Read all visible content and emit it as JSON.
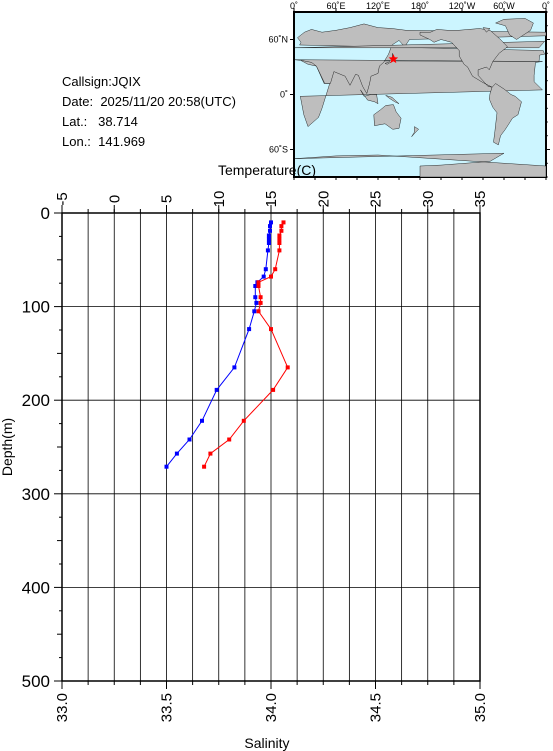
{
  "info": {
    "callsign": "Callsign:JQIX",
    "date_label": "Date:",
    "date": "2025/11/20 20:58(UTC)",
    "lat_label": "Lat.:",
    "lat": "38.714",
    "lon_label": "Lon.:",
    "lon": "141.969"
  },
  "map": {
    "lon_ticks": [
      "0˚",
      "60˚E",
      "120˚E",
      "180˚",
      "120˚W",
      "60˚W",
      "0˚"
    ],
    "lat_ticks": [
      "60˚N",
      "0˚",
      "60˚S"
    ],
    "ocean_color": "#ccf5ff",
    "land_color": "#bebebe",
    "marker": {
      "lon": 141.969,
      "lat": 38.714,
      "symbol": "star",
      "color": "#ff0000"
    }
  },
  "chart_data": {
    "type": "line",
    "title": "",
    "ylabel": "Depth(m)",
    "ylim": [
      500,
      0
    ],
    "yticks": [
      "0",
      "100",
      "200",
      "300",
      "400",
      "500"
    ],
    "top_axis": {
      "label": "Temperature(C)",
      "range": [
        -5,
        35
      ],
      "ticks": [
        "-5",
        "0",
        "5",
        "10",
        "15",
        "20",
        "25",
        "30",
        "35"
      ]
    },
    "bottom_axis": {
      "label": "Salinity",
      "range": [
        33.0,
        35.0
      ],
      "ticks": [
        "33.0",
        "33.5",
        "34.0",
        "34.5",
        "35.0"
      ]
    },
    "grid": true,
    "series": [
      {
        "color": "#0000ff",
        "axis": "top",
        "x": [
          15.0,
          14.9,
          14.9,
          14.8,
          14.8,
          14.8,
          14.7,
          14.5,
          14.3,
          13.7,
          13.5,
          13.5,
          13.6,
          13.4,
          12.9,
          11.5,
          9.8,
          8.4,
          7.2,
          6.0,
          5.0
        ],
        "y": [
          10,
          14,
          19,
          24,
          28,
          32,
          40,
          60,
          68,
          74,
          78,
          90,
          96,
          105,
          124,
          165,
          189,
          222,
          242,
          257,
          271
        ]
      },
      {
        "color": "#ff0000",
        "axis": "bottom",
        "x": [
          34.06,
          34.05,
          34.05,
          34.04,
          34.04,
          34.04,
          34.04,
          34.02,
          34.0,
          33.94,
          33.94,
          33.95,
          33.95,
          33.94,
          34.0,
          34.08,
          34.01,
          33.87,
          33.8,
          33.71,
          33.68
        ],
        "y": [
          10,
          14,
          19,
          24,
          28,
          32,
          40,
          60,
          68,
          74,
          78,
          90,
          96,
          105,
          124,
          165,
          189,
          222,
          242,
          257,
          271
        ]
      }
    ]
  }
}
